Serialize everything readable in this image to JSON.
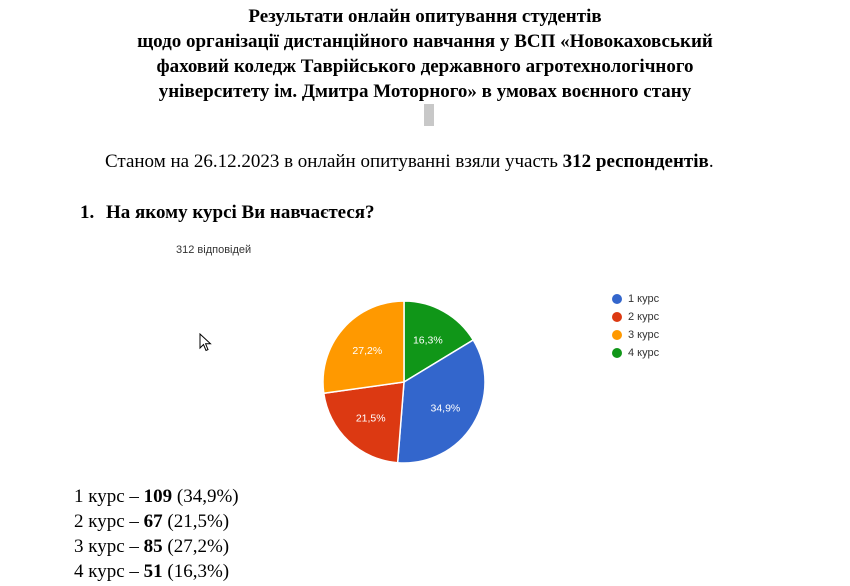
{
  "header": {
    "title_lines": [
      "Результати онлайн опитування студентів",
      "щодо організації дистанційного навчання у ВСП «Новокаховський",
      "фаховий коледж Таврійського державного агротехнологічного",
      "університету ім. Дмитра Моторного» в умовах воєнного стану"
    ]
  },
  "intro": {
    "prefix": "Станом на 26.12.2023 в онлайн опитуванні взяли участь ",
    "bold": "312 респондентів",
    "suffix": "."
  },
  "question": {
    "number": "1.",
    "text": "На якому курсі Ви навчаєтеся?"
  },
  "responses_label": "312 відповідей",
  "chart_data": {
    "type": "pie",
    "title": "",
    "categories": [
      "1 курс",
      "2 курс",
      "3 курс",
      "4 курс"
    ],
    "values": [
      34.9,
      21.5,
      27.2,
      16.3
    ],
    "labels": [
      "34,9%",
      "21,5%",
      "27,2%",
      "16,3%"
    ],
    "colors": [
      "#3366cc",
      "#dc3912",
      "#ff9900",
      "#109618"
    ],
    "legend_position": "right"
  },
  "stats": [
    {
      "label": "1 курс – ",
      "count": "109",
      "pct": " (34,9%)"
    },
    {
      "label": "2 курс – ",
      "count": "67",
      "pct": " (21,5%)"
    },
    {
      "label": "3 курс – ",
      "count": "85",
      "pct": " (27,2%)"
    },
    {
      "label": "4 курс – ",
      "count": "51",
      "pct": " (16,3%)"
    }
  ]
}
